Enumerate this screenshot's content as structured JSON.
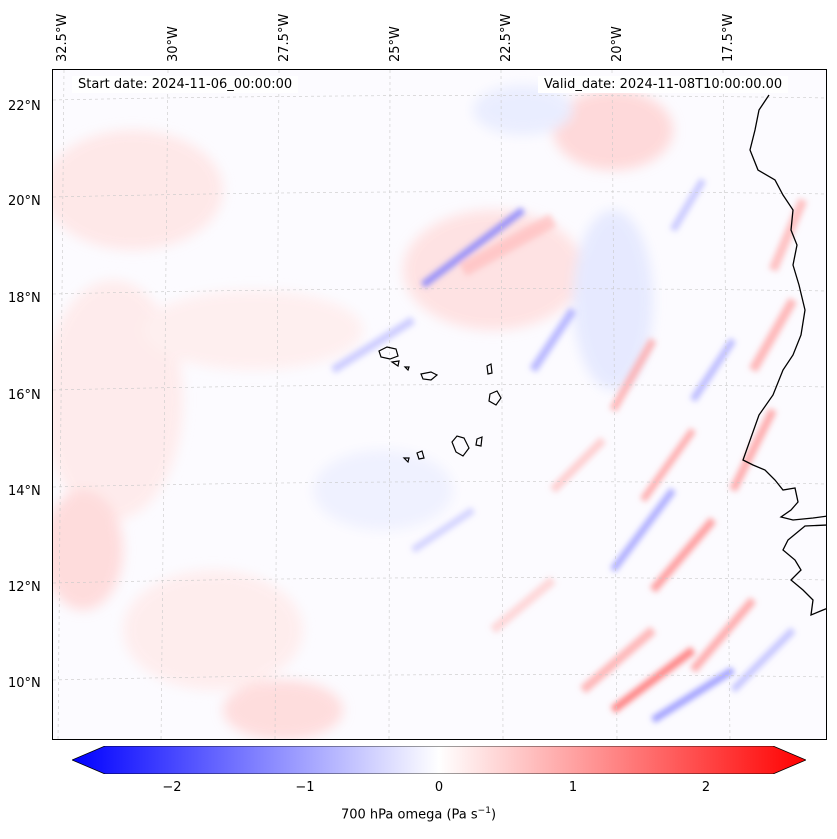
{
  "header": {
    "start_date": "Start date: 2024-11-06_00:00:00",
    "valid_date": "Valid_date: 2024-11-08T10:00:00.00"
  },
  "longitude_labels": [
    "32.5°W",
    "30°W",
    "27.5°W",
    "25°W",
    "22.5°W",
    "20°W",
    "17.5°W"
  ],
  "latitude_labels": [
    "22°N",
    "20°N",
    "18°N",
    "16°N",
    "14°N",
    "12°N",
    "10°N"
  ],
  "colorbar": {
    "ticks": [
      "−2",
      "−1",
      "0",
      "1",
      "2"
    ],
    "label": "700 hPa omega (Pa s",
    "label_sup": "−1",
    "label_end": ")",
    "range": [
      -2.5,
      2.5
    ],
    "colormap": "bwr",
    "low_color": "#0000ff",
    "mid_color": "#ffffff",
    "high_color": "#ff0000"
  },
  "map": {
    "projection": "lambert-conformal",
    "field": "700 hPa omega",
    "gridlines": true,
    "coastline_color": "#000000"
  }
}
